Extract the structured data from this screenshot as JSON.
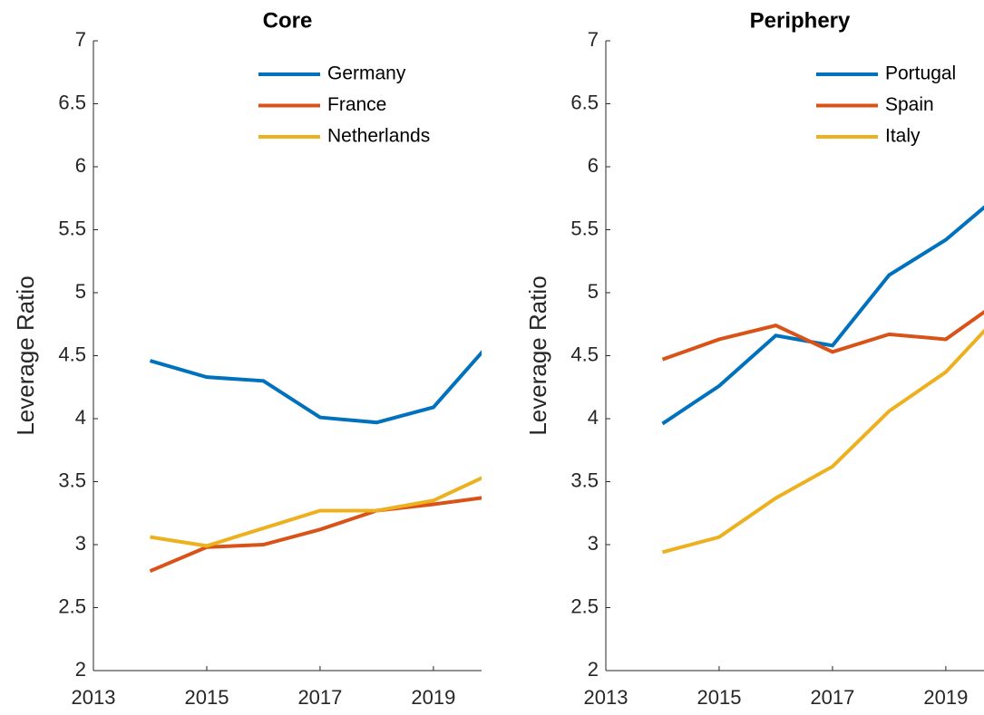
{
  "chart_data": [
    {
      "type": "line",
      "title": "Core",
      "ylabel": "Leverage Ratio",
      "x": [
        2014,
        2015,
        2016,
        2017,
        2018,
        2019,
        2020
      ],
      "series": [
        {
          "name": "Germany",
          "color": "#0072bd",
          "values": [
            4.46,
            4.33,
            4.3,
            4.01,
            3.97,
            4.09,
            4.6
          ]
        },
        {
          "name": "France",
          "color": "#d95319",
          "values": [
            2.79,
            2.98,
            3.0,
            3.12,
            3.27,
            3.32,
            3.38
          ]
        },
        {
          "name": "Netherlands",
          "color": "#edb120",
          "values": [
            3.06,
            2.99,
            3.13,
            3.27,
            3.27,
            3.35,
            3.56
          ]
        }
      ],
      "xlim": [
        2013,
        2019.85
      ],
      "xticks": [
        2013,
        2015,
        2017,
        2019
      ],
      "ylim": [
        2,
        7
      ],
      "yticks": [
        2,
        2.5,
        3,
        3.5,
        4,
        4.5,
        5,
        5.5,
        6,
        6.5,
        7
      ],
      "legend": "top-right"
    },
    {
      "type": "line",
      "title": "Periphery",
      "ylabel": "Leverage Ratio",
      "x": [
        2014,
        2015,
        2016,
        2017,
        2018,
        2019,
        2020
      ],
      "series": [
        {
          "name": "Portugal",
          "color": "#0072bd",
          "values": [
            3.96,
            4.26,
            4.66,
            4.58,
            5.14,
            5.42,
            5.8
          ]
        },
        {
          "name": "Spain",
          "color": "#d95319",
          "values": [
            4.47,
            4.63,
            4.74,
            4.53,
            4.67,
            4.63,
            4.95
          ]
        },
        {
          "name": "Italy",
          "color": "#edb120",
          "values": [
            2.94,
            3.06,
            3.37,
            3.62,
            4.06,
            4.37,
            4.85
          ]
        }
      ],
      "xlim": [
        2013,
        2019.85
      ],
      "xticks": [
        2013,
        2015,
        2017,
        2019
      ],
      "ylim": [
        2,
        7
      ],
      "yticks": [
        2,
        2.5,
        3,
        3.5,
        4,
        4.5,
        5,
        5.5,
        6,
        6.5,
        7
      ],
      "legend": "top-right"
    }
  ]
}
